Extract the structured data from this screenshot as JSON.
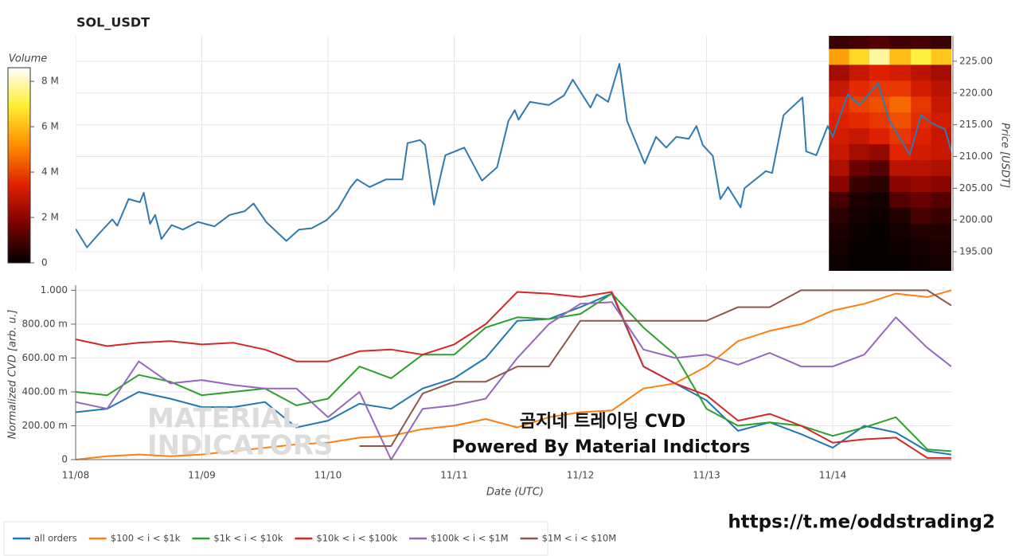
{
  "chart_data": [
    {
      "type": "line",
      "title": "SOL_USDT",
      "y_axis_label": "Price [USDT]",
      "color": "#2f7bb0",
      "x": [
        0.0,
        0.09,
        0.17,
        0.29,
        0.33,
        0.42,
        0.51,
        0.54,
        0.59,
        0.63,
        0.68,
        0.76,
        0.85,
        0.97,
        1.1,
        1.22,
        1.34,
        1.41,
        1.51,
        1.67,
        1.77,
        1.87,
        1.99,
        2.08,
        2.18,
        2.23,
        2.33,
        2.46,
        2.59,
        2.63,
        2.73,
        2.77,
        2.84,
        2.93,
        3.08,
        3.22,
        3.34,
        3.43,
        3.48,
        3.51,
        3.6,
        3.75,
        3.87,
        3.94,
        4.08,
        4.13,
        4.22,
        4.31,
        4.37,
        4.51,
        4.6,
        4.68,
        4.76,
        4.86,
        4.92,
        4.97,
        5.05,
        5.11,
        5.17,
        5.27,
        5.3,
        5.47,
        5.52,
        5.61,
        5.76,
        5.79,
        5.87,
        5.96,
        6.0,
        6.12,
        6.21,
        6.36,
        6.45,
        6.61,
        6.7,
        6.79,
        6.89,
        6.94
      ],
      "values": [
        198.6,
        195.7,
        197.5,
        200.1,
        199.1,
        203.3,
        202.8,
        204.3,
        199.4,
        200.8,
        197.0,
        199.2,
        198.5,
        199.7,
        199.0,
        200.8,
        201.4,
        202.6,
        199.7,
        196.7,
        198.5,
        198.7,
        200.0,
        201.8,
        205.2,
        206.4,
        205.2,
        206.4,
        206.4,
        212.1,
        212.6,
        211.8,
        202.4,
        210.2,
        211.4,
        206.2,
        208.3,
        215.6,
        217.3,
        215.8,
        218.6,
        218.1,
        219.6,
        222.1,
        217.7,
        219.8,
        218.6,
        224.6,
        215.6,
        208.9,
        213.1,
        211.4,
        213.1,
        212.8,
        214.8,
        211.8,
        210.1,
        203.3,
        205.2,
        202.0,
        205.0,
        207.7,
        207.4,
        216.5,
        219.3,
        210.8,
        210.2,
        214.8,
        213.1,
        219.8,
        218.1,
        221.5,
        215.6,
        210.3,
        216.5,
        215.2,
        214.3,
        210.8
      ],
      "xlim": [
        0,
        6.94
      ],
      "xticks": [
        {
          "value": 0,
          "label": "11/08"
        },
        {
          "value": 1,
          "label": "11/09"
        },
        {
          "value": 2,
          "label": "11/10"
        },
        {
          "value": 3,
          "label": "11/11"
        },
        {
          "value": 4,
          "label": "11/12"
        },
        {
          "value": 5,
          "label": "11/13"
        },
        {
          "value": 6,
          "label": "11/14"
        }
      ],
      "ylim": [
        192,
        229
      ],
      "yticks": [
        {
          "value": 195,
          "label": "195.00"
        },
        {
          "value": 200,
          "label": "200.00"
        },
        {
          "value": 205,
          "label": "205.00"
        },
        {
          "value": 210,
          "label": "210.00"
        },
        {
          "value": 215,
          "label": "215.00"
        },
        {
          "value": 220,
          "label": "220.00"
        },
        {
          "value": 225,
          "label": "225.00"
        }
      ],
      "grid": true
    },
    {
      "type": "heatmap",
      "title": "Volume",
      "x_edges": [
        5.97,
        6.13,
        6.29,
        6.45,
        6.62,
        6.78,
        6.94
      ],
      "y_edges": [
        192,
        194.5,
        197,
        199.5,
        202,
        204.5,
        207,
        209.5,
        212,
        214.5,
        217,
        219.5,
        222,
        224.5,
        227,
        229
      ],
      "values": [
        [
          200000.0,
          100000.0,
          100000.0,
          100000.0,
          200000.0,
          300000.0
        ],
        [
          300000.0,
          100000.0,
          100000.0,
          200000.0,
          300000.0,
          400000.0
        ],
        [
          400000.0,
          200000.0,
          100000.0,
          300000.0,
          500000.0,
          500000.0
        ],
        [
          600000.0,
          300000.0,
          200000.0,
          500000.0,
          1000000.0,
          800000.0
        ],
        [
          1000000.0,
          400000.0,
          300000.0,
          1200000.0,
          1500000.0,
          1200000.0
        ],
        [
          2000000.0,
          800000.0,
          600000.0,
          2000000.0,
          2200000.0,
          2000000.0
        ],
        [
          2600000.0,
          1500000.0,
          1200000.0,
          2800000.0,
          2800000.0,
          2600000.0
        ],
        [
          3000000.0,
          2400000.0,
          2200000.0,
          3500000.0,
          3200000.0,
          3000000.0
        ],
        [
          3200000.0,
          3000000.0,
          3400000.0,
          3800000.0,
          3400000.0,
          3000000.0
        ],
        [
          3400000.0,
          3600000.0,
          3800000.0,
          4200000.0,
          3600000.0,
          3200000.0
        ],
        [
          3600000.0,
          4000000.0,
          4200000.0,
          4600000.0,
          3800000.0,
          3000000.0
        ],
        [
          3000000.0,
          3600000.0,
          3800000.0,
          3800000.0,
          3200000.0,
          2800000.0
        ],
        [
          2400000.0,
          3000000.0,
          3400000.0,
          3200000.0,
          2800000.0,
          2400000.0
        ],
        [
          5500000.0,
          6500000.0,
          7800000.0,
          6000000.0,
          7000000.0,
          6200000.0
        ],
        [
          800000.0,
          1000000.0,
          1200000.0,
          900000.0,
          1000000.0,
          800000.0
        ]
      ],
      "zlim": [
        0,
        8600000.0
      ],
      "zticks": [
        0,
        {
          "value": 2000000.0,
          "label": "2 M"
        },
        {
          "value": 4000000.0,
          "label": "4 M"
        },
        {
          "value": 6000000.0,
          "label": "6 M"
        },
        {
          "value": 8000000.0,
          "label": "8 M"
        }
      ],
      "colorscale": [
        "#000000",
        "#7a0000",
        "#e02000",
        "#ff8c00",
        "#ffee30",
        "#ffffff"
      ]
    },
    {
      "type": "line",
      "x_axis_label": "Date (UTC)",
      "y_axis_label": "Normalized CVD [arb. u.]",
      "x": [
        0,
        0.25,
        0.5,
        0.75,
        1,
        1.25,
        1.5,
        1.75,
        2,
        2.25,
        2.5,
        2.75,
        3,
        3.25,
        3.5,
        3.75,
        4,
        4.25,
        4.5,
        4.75,
        5,
        5.25,
        5.5,
        5.75,
        6,
        6.25,
        6.5,
        6.75,
        6.94
      ],
      "series": [
        {
          "name": "all orders",
          "color": "#1f77b4",
          "values": [
            0.28,
            0.3,
            0.4,
            0.36,
            0.31,
            0.31,
            0.34,
            0.19,
            0.23,
            0.33,
            0.3,
            0.42,
            0.48,
            0.6,
            0.82,
            0.83,
            0.9,
            0.98,
            0.55,
            0.45,
            0.35,
            0.17,
            0.22,
            0.15,
            0.07,
            0.2,
            0.16,
            0.05,
            0.03
          ]
        },
        {
          "name": "$100 < i < $1k",
          "color": "#ff7f0e",
          "values": [
            0,
            0.02,
            0.03,
            0.02,
            0.03,
            0.05,
            0.07,
            0.09,
            0.1,
            0.13,
            0.14,
            0.18,
            0.2,
            0.24,
            0.19,
            0.25,
            0.28,
            0.29,
            0.42,
            0.45,
            0.55,
            0.7,
            0.76,
            0.8,
            0.88,
            0.92,
            0.98,
            0.96,
            1.0
          ]
        },
        {
          "name": "$1k < i < $10k",
          "color": "#2ca02c",
          "values": [
            0.4,
            0.38,
            0.5,
            0.46,
            0.38,
            0.4,
            0.42,
            0.32,
            0.36,
            0.55,
            0.48,
            0.62,
            0.62,
            0.78,
            0.84,
            0.83,
            0.86,
            0.98,
            0.78,
            0.62,
            0.3,
            0.2,
            0.22,
            0.2,
            0.14,
            0.19,
            0.25,
            0.06,
            0.05
          ]
        },
        {
          "name": "$10k < i < $100k",
          "color": "#d62728",
          "values": [
            0.71,
            0.67,
            0.69,
            0.7,
            0.68,
            0.69,
            0.65,
            0.58,
            0.58,
            0.64,
            0.65,
            0.62,
            0.68,
            0.8,
            0.99,
            0.98,
            0.96,
            0.99,
            0.55,
            0.45,
            0.38,
            0.23,
            0.27,
            0.2,
            0.1,
            0.12,
            0.13,
            0.01,
            0.01
          ]
        },
        {
          "name": "$100k < i < $1M",
          "color": "#9467bd",
          "values": [
            0.34,
            0.3,
            0.58,
            0.45,
            0.47,
            0.44,
            0.42,
            0.42,
            0.25,
            0.4,
            0.0,
            0.3,
            0.32,
            0.36,
            0.6,
            0.8,
            0.92,
            0.93,
            0.65,
            0.6,
            0.62,
            0.56,
            0.63,
            0.55,
            0.55,
            0.62,
            0.84,
            0.66,
            0.55
          ]
        },
        {
          "name": "$1M < i < $10M",
          "color": "#8c564b",
          "values": [
            null,
            null,
            null,
            null,
            null,
            null,
            null,
            null,
            null,
            0.08,
            0.08,
            0.39,
            0.46,
            0.46,
            0.55,
            0.55,
            0.82,
            0.82,
            0.82,
            0.82,
            0.82,
            0.9,
            0.9,
            1.0,
            1.0,
            1.0,
            1.0,
            1.0,
            0.91
          ]
        }
      ],
      "xlim": [
        0,
        6.94
      ],
      "xticks": [
        {
          "value": 0,
          "label": "11/08"
        },
        {
          "value": 1,
          "label": "11/09"
        },
        {
          "value": 2,
          "label": "11/10"
        },
        {
          "value": 3,
          "label": "11/11"
        },
        {
          "value": 4,
          "label": "11/12"
        },
        {
          "value": 5,
          "label": "11/13"
        },
        {
          "value": 6,
          "label": "11/14"
        }
      ],
      "ylim": [
        0,
        1.03
      ],
      "yticks": [
        0,
        {
          "value": 0.2,
          "label": "200.00 m"
        },
        {
          "value": 0.4,
          "label": "400.00 m"
        },
        {
          "value": 0.6,
          "label": "600.00 m"
        },
        {
          "value": 0.8,
          "label": "800.00 m"
        },
        {
          "value": 1,
          "label": "1.000"
        }
      ],
      "grid": true,
      "legend": "bottom"
    }
  ],
  "annotations": {
    "headline": "곰지네 트레이딩 CVD",
    "subline": "Powered By Material Indictors",
    "link": "https://t.me/oddstrading2",
    "watermark": [
      "MATERIAL",
      "INDICATORS"
    ]
  }
}
